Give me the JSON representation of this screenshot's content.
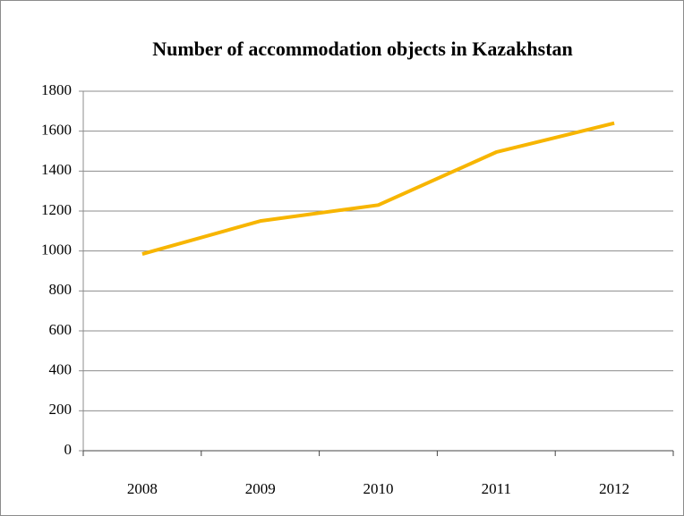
{
  "chart_data": {
    "type": "line",
    "title": "Number of accommodation objects in Kazakhstan",
    "categories": [
      "2008",
      "2009",
      "2010",
      "2011",
      "2012"
    ],
    "series": [
      {
        "name": "Number of accommodation objects",
        "color": "#f7b500",
        "values": [
          985,
          1150,
          1230,
          1495,
          1640
        ]
      }
    ],
    "ylim": [
      0,
      1800
    ],
    "yticks": [
      0,
      200,
      400,
      600,
      800,
      1000,
      1200,
      1400,
      1600,
      1800
    ],
    "grid": true
  }
}
